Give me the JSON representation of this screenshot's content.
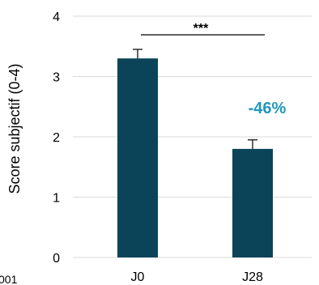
{
  "chart_data": {
    "type": "bar",
    "categories": [
      "J0",
      "J28"
    ],
    "values": [
      3.3,
      1.8
    ],
    "errors": [
      0.15,
      0.15
    ],
    "ylabel": "Score subjectif (0-4)",
    "ylim": [
      0,
      4
    ],
    "yticks": [
      "0",
      "1",
      "2",
      "3",
      "4"
    ],
    "grid": true,
    "bar_color": "#0b4459",
    "annotations": {
      "significance": "***",
      "change_label": "-46%",
      "change_color": "#1f97b8"
    },
    "footnote": "001"
  }
}
